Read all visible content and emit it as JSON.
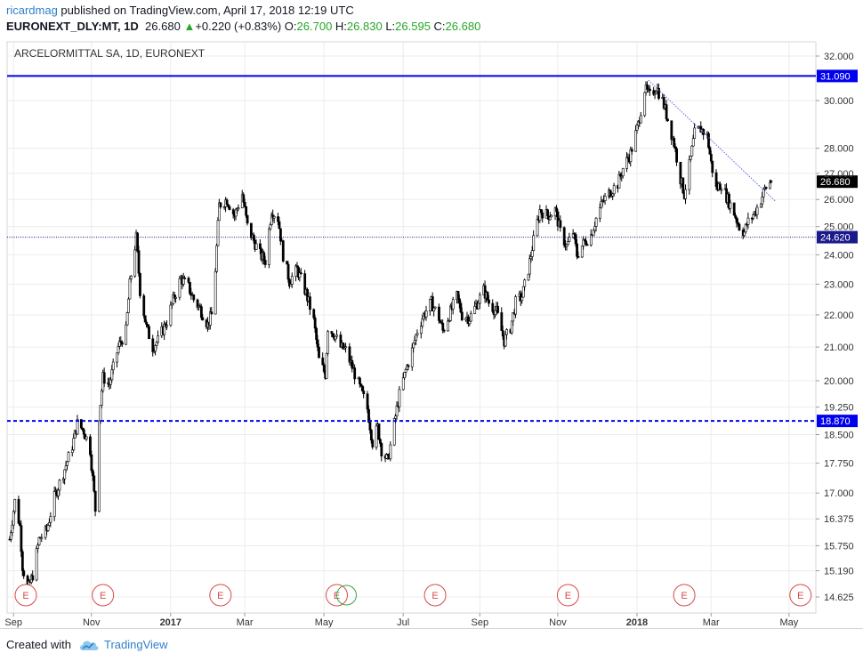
{
  "header": {
    "author": "ricardmag",
    "published": " published on TradingView.com, April 17, 2018 12:19 UTC",
    "symbol": "EURONEXT_DLY:MT, 1D",
    "last": "26.680",
    "arrow": "▲",
    "change": "+0.220 (+0.83%)",
    "o_label": "O:",
    "o_value": "26.700",
    "h_label": "H:",
    "h_value": "26.830",
    "l_label": "L:",
    "l_value": "26.595",
    "c_label": "C:",
    "c_value": "26.680"
  },
  "footer": {
    "created": "Created with",
    "brand": "TradingView"
  },
  "colors": {
    "hline": "#0000ee",
    "hline_label_bg": "#0000ee",
    "last_label_bg": "#000000",
    "grid": "#ececec",
    "candle": "#000000",
    "trend": "#5b6ad0",
    "earnings": "#d94a4a"
  },
  "chart_data": {
    "type": "candlestick",
    "title": "ARCELORMITTAL SA, 1D, EURONEXT",
    "scale": "log",
    "grid": true,
    "y_ticks": [
      32,
      30,
      28,
      27,
      26,
      25,
      24,
      23,
      22,
      21,
      20,
      19.25,
      18.5,
      17.75,
      17,
      16.375,
      15.75,
      15.19,
      14.625
    ],
    "y_tick_labels": [
      "32.000",
      "30.000",
      "28.000",
      "27.000",
      "26.000",
      "25.000",
      "24.000",
      "23.000",
      "22.000",
      "21.000",
      "20.000",
      "19.250",
      "18.500",
      "17.750",
      "17.000",
      "16.375",
      "15.750",
      "15.190",
      "14.625"
    ],
    "x_labels": [
      "Sep",
      "Nov",
      "2017",
      "Mar",
      "May",
      "Jul",
      "Sep",
      "Nov",
      "2018",
      "Mar",
      "May"
    ],
    "x_labels_bold": [
      "2017",
      "2018"
    ],
    "x_dates": [
      "2016-09-01",
      "2016-11-01",
      "2017-01-02",
      "2017-03-01",
      "2017-05-02",
      "2017-07-03",
      "2017-09-01",
      "2017-11-01",
      "2018-01-02",
      "2018-03-01",
      "2018-05-01"
    ],
    "horizontal_lines": [
      {
        "price": 31.09,
        "label": "31.090",
        "style": "solid"
      },
      {
        "price": 24.62,
        "label": "24.620",
        "style": "dotted"
      },
      {
        "price": 18.87,
        "label": "18.870",
        "style": "dashed"
      }
    ],
    "last_price": {
      "price": 26.68,
      "label": "26.680"
    },
    "trendline": {
      "start": {
        "date": "2018-01-11",
        "price": 30.9
      },
      "end": {
        "date": "2018-04-20",
        "price": 25.95
      }
    },
    "earnings_marker_label": "E",
    "earnings_dates": [
      "2016-07-29",
      "2016-11-10",
      "2017-02-10",
      "2017-05-12",
      "2017-07-28",
      "2017-11-09",
      "2018-02-08",
      "2018-05-10"
    ],
    "price_path": [
      {
        "date": "2016-08-29",
        "close": 15.9
      },
      {
        "date": "2016-09-02",
        "close": 16.8
      },
      {
        "date": "2016-09-06",
        "close": 16.2
      },
      {
        "date": "2016-09-08",
        "close": 15.3
      },
      {
        "date": "2016-09-12",
        "close": 14.75
      },
      {
        "date": "2016-09-16",
        "close": 15.1
      },
      {
        "date": "2016-09-21",
        "close": 15.9
      },
      {
        "date": "2016-09-27",
        "close": 16.1
      },
      {
        "date": "2016-10-03",
        "close": 16.9
      },
      {
        "date": "2016-10-10",
        "close": 17.5
      },
      {
        "date": "2016-10-17",
        "close": 18.2
      },
      {
        "date": "2016-10-21",
        "close": 18.8
      },
      {
        "date": "2016-10-26",
        "close": 18.6
      },
      {
        "date": "2016-10-31",
        "close": 18.1
      },
      {
        "date": "2016-11-04",
        "close": 16.6
      },
      {
        "date": "2016-11-07",
        "close": 19.0
      },
      {
        "date": "2016-11-10",
        "close": 20.1
      },
      {
        "date": "2016-11-15",
        "close": 19.9
      },
      {
        "date": "2016-11-22",
        "close": 21.0
      },
      {
        "date": "2016-11-28",
        "close": 21.5
      },
      {
        "date": "2016-12-01",
        "close": 23.0
      },
      {
        "date": "2016-12-06",
        "close": 24.6
      },
      {
        "date": "2016-12-09",
        "close": 22.8
      },
      {
        "date": "2016-12-14",
        "close": 21.6
      },
      {
        "date": "2016-12-19",
        "close": 21.0
      },
      {
        "date": "2016-12-23",
        "close": 21.2
      },
      {
        "date": "2016-12-30",
        "close": 21.8
      },
      {
        "date": "2017-01-05",
        "close": 22.6
      },
      {
        "date": "2017-01-10",
        "close": 23.2
      },
      {
        "date": "2017-01-16",
        "close": 22.9
      },
      {
        "date": "2017-01-20",
        "close": 22.5
      },
      {
        "date": "2017-01-25",
        "close": 22.2
      },
      {
        "date": "2017-01-31",
        "close": 21.7
      },
      {
        "date": "2017-02-03",
        "close": 22.0
      },
      {
        "date": "2017-02-06",
        "close": 23.5
      },
      {
        "date": "2017-02-09",
        "close": 25.8
      },
      {
        "date": "2017-02-15",
        "close": 26.0
      },
      {
        "date": "2017-02-21",
        "close": 25.4
      },
      {
        "date": "2017-02-27",
        "close": 26.2
      },
      {
        "date": "2017-03-03",
        "close": 25.0
      },
      {
        "date": "2017-03-08",
        "close": 24.5
      },
      {
        "date": "2017-03-13",
        "close": 24.0
      },
      {
        "date": "2017-03-17",
        "close": 23.8
      },
      {
        "date": "2017-03-22",
        "close": 25.6
      },
      {
        "date": "2017-03-27",
        "close": 25.3
      },
      {
        "date": "2017-03-31",
        "close": 24.0
      },
      {
        "date": "2017-04-05",
        "close": 23.1
      },
      {
        "date": "2017-04-11",
        "close": 23.5
      },
      {
        "date": "2017-04-18",
        "close": 22.7
      },
      {
        "date": "2017-04-24",
        "close": 21.8
      },
      {
        "date": "2017-04-28",
        "close": 20.6
      },
      {
        "date": "2017-05-03",
        "close": 20.2
      },
      {
        "date": "2017-05-05",
        "close": 21.6
      },
      {
        "date": "2017-05-10",
        "close": 21.4
      },
      {
        "date": "2017-05-15",
        "close": 21.0
      },
      {
        "date": "2017-05-19",
        "close": 20.9
      },
      {
        "date": "2017-05-24",
        "close": 20.4
      },
      {
        "date": "2017-05-30",
        "close": 19.8
      },
      {
        "date": "2017-06-05",
        "close": 19.2
      },
      {
        "date": "2017-06-09",
        "close": 18.3
      },
      {
        "date": "2017-06-13",
        "close": 18.7
      },
      {
        "date": "2017-06-16",
        "close": 18.1
      },
      {
        "date": "2017-06-21",
        "close": 17.8
      },
      {
        "date": "2017-06-26",
        "close": 18.8
      },
      {
        "date": "2017-06-30",
        "close": 19.6
      },
      {
        "date": "2017-07-05",
        "close": 20.3
      },
      {
        "date": "2017-07-10",
        "close": 20.9
      },
      {
        "date": "2017-07-14",
        "close": 21.5
      },
      {
        "date": "2017-07-19",
        "close": 22.0
      },
      {
        "date": "2017-07-25",
        "close": 22.4
      },
      {
        "date": "2017-07-31",
        "close": 21.9
      },
      {
        "date": "2017-08-03",
        "close": 21.5
      },
      {
        "date": "2017-08-08",
        "close": 22.0
      },
      {
        "date": "2017-08-14",
        "close": 22.6
      },
      {
        "date": "2017-08-18",
        "close": 22.0
      },
      {
        "date": "2017-08-24",
        "close": 21.9
      },
      {
        "date": "2017-08-29",
        "close": 22.3
      },
      {
        "date": "2017-09-04",
        "close": 22.8
      },
      {
        "date": "2017-09-08",
        "close": 22.4
      },
      {
        "date": "2017-09-14",
        "close": 22.1
      },
      {
        "date": "2017-09-20",
        "close": 21.2
      },
      {
        "date": "2017-09-25",
        "close": 21.6
      },
      {
        "date": "2017-09-29",
        "close": 22.4
      },
      {
        "date": "2017-10-04",
        "close": 22.6
      },
      {
        "date": "2017-10-09",
        "close": 23.5
      },
      {
        "date": "2017-10-13",
        "close": 24.5
      },
      {
        "date": "2017-10-18",
        "close": 25.6
      },
      {
        "date": "2017-10-24",
        "close": 25.4
      },
      {
        "date": "2017-10-30",
        "close": 25.6
      },
      {
        "date": "2017-11-03",
        "close": 24.8
      },
      {
        "date": "2017-11-08",
        "close": 24.3
      },
      {
        "date": "2017-11-13",
        "close": 24.8
      },
      {
        "date": "2017-11-16",
        "close": 24.0
      },
      {
        "date": "2017-11-21",
        "close": 24.4
      },
      {
        "date": "2017-11-27",
        "close": 24.7
      },
      {
        "date": "2017-12-01",
        "close": 25.3
      },
      {
        "date": "2017-12-06",
        "close": 25.9
      },
      {
        "date": "2017-12-12",
        "close": 26.3
      },
      {
        "date": "2017-12-18",
        "close": 26.6
      },
      {
        "date": "2017-12-22",
        "close": 27.2
      },
      {
        "date": "2017-12-28",
        "close": 27.8
      },
      {
        "date": "2018-01-03",
        "close": 29.0
      },
      {
        "date": "2018-01-08",
        "close": 30.5
      },
      {
        "date": "2018-01-12",
        "close": 30.2
      },
      {
        "date": "2018-01-17",
        "close": 30.6
      },
      {
        "date": "2018-01-22",
        "close": 30.0
      },
      {
        "date": "2018-01-26",
        "close": 29.2
      },
      {
        "date": "2018-01-31",
        "close": 28.2
      },
      {
        "date": "2018-02-05",
        "close": 26.8
      },
      {
        "date": "2018-02-08",
        "close": 26.2
      },
      {
        "date": "2018-02-13",
        "close": 27.6
      },
      {
        "date": "2018-02-16",
        "close": 28.6
      },
      {
        "date": "2018-02-21",
        "close": 28.8
      },
      {
        "date": "2018-02-26",
        "close": 28.5
      },
      {
        "date": "2018-03-01",
        "close": 27.4
      },
      {
        "date": "2018-03-05",
        "close": 26.4
      },
      {
        "date": "2018-03-09",
        "close": 26.6
      },
      {
        "date": "2018-03-14",
        "close": 26.0
      },
      {
        "date": "2018-03-19",
        "close": 25.5
      },
      {
        "date": "2018-03-23",
        "close": 25.0
      },
      {
        "date": "2018-03-27",
        "close": 24.8
      },
      {
        "date": "2018-03-29",
        "close": 25.1
      },
      {
        "date": "2018-04-04",
        "close": 25.5
      },
      {
        "date": "2018-04-09",
        "close": 26.0
      },
      {
        "date": "2018-04-12",
        "close": 26.4
      },
      {
        "date": "2018-04-17",
        "close": 26.68
      }
    ]
  }
}
